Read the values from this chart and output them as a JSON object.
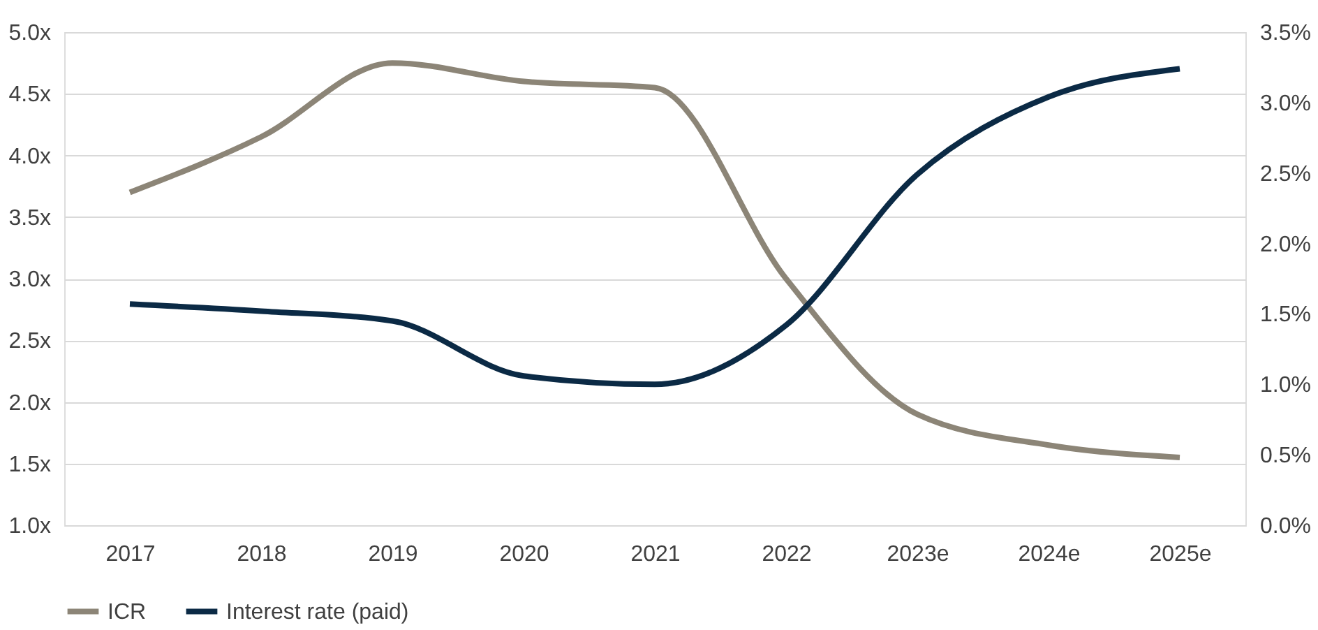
{
  "chart_data": {
    "type": "line",
    "categories": [
      "2017",
      "2018",
      "2019",
      "2020",
      "2021",
      "2022",
      "2023e",
      "2024e",
      "2025e"
    ],
    "series": [
      {
        "name": "ICR",
        "color": "#8c8577",
        "values": [
          3.7,
          4.15,
          4.75,
          4.6,
          4.55,
          3.0,
          1.9,
          1.65,
          1.55
        ]
      },
      {
        "name": "Interest rate (paid)",
        "color": "#0b2a45",
        "axis": "y2",
        "values": [
          1.57,
          1.52,
          1.45,
          1.06,
          1.0,
          1.42,
          2.49,
          3.04,
          3.24
        ]
      }
    ],
    "ylim": [
      1.0,
      5.0
    ],
    "yticks": [
      {
        "value": 1.0,
        "label": "1.0x"
      },
      {
        "value": 1.5,
        "label": "1.5x"
      },
      {
        "value": 2.0,
        "label": "2.0x"
      },
      {
        "value": 2.5,
        "label": "2.5x"
      },
      {
        "value": 3.0,
        "label": "3.0x"
      },
      {
        "value": 3.5,
        "label": "3.5x"
      },
      {
        "value": 4.0,
        "label": "4.0x"
      },
      {
        "value": 4.5,
        "label": "4.5x"
      },
      {
        "value": 5.0,
        "label": "5.0x"
      }
    ],
    "y2lim": [
      0.0,
      3.5
    ],
    "y2ticks": [
      {
        "value": 0.0,
        "label": "0.0%"
      },
      {
        "value": 0.5,
        "label": "0.5%"
      },
      {
        "value": 1.0,
        "label": "1.0%"
      },
      {
        "value": 1.5,
        "label": "1.5%"
      },
      {
        "value": 2.0,
        "label": "2.0%"
      },
      {
        "value": 2.5,
        "label": "2.5%"
      },
      {
        "value": 3.0,
        "label": "3.0%"
      },
      {
        "value": 3.5,
        "label": "3.5%"
      }
    ],
    "grid": "y",
    "legend": "bottom",
    "marker": "none",
    "line_style": "solid"
  }
}
